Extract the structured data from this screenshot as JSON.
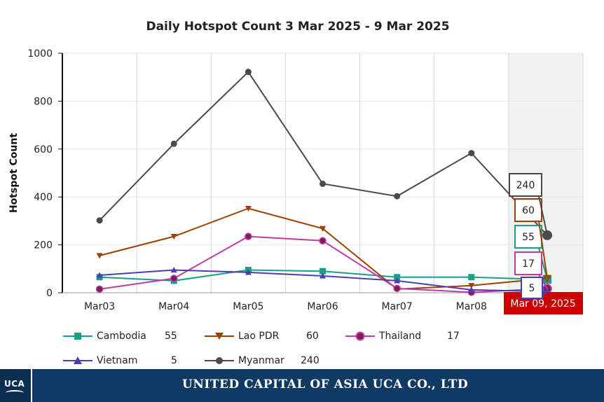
{
  "chart_data": {
    "type": "line",
    "title": "Daily Hotspot Count 3 Mar 2025 - 9 Mar 2025",
    "ylabel": "Hotspot Count",
    "xlabel": "",
    "ylim": [
      0,
      1000
    ],
    "yticks": [
      0,
      200,
      400,
      600,
      800,
      1000
    ],
    "categories": [
      "Mar03",
      "Mar04",
      "Mar05",
      "Mar06",
      "Mar07",
      "Mar08",
      "Mar 09, 2025"
    ],
    "grid": true,
    "legend_position": "bottom",
    "series": [
      {
        "name": "Cambodia",
        "color": "#16a085",
        "marker": "square",
        "values": [
          65,
          50,
          95,
          90,
          65,
          65,
          55
        ],
        "last_label": "55"
      },
      {
        "name": "Lao PDR",
        "color": "#a04000",
        "marker": "triangle-down",
        "values": [
          155,
          235,
          352,
          268,
          15,
          30,
          60
        ],
        "last_label": "60"
      },
      {
        "name": "Thailand",
        "color": "#c23ba5",
        "marker": "circle",
        "values": [
          15,
          60,
          235,
          217,
          18,
          2,
          17
        ],
        "last_label": "17"
      },
      {
        "name": "Vietnam",
        "color": "#4b3fb0",
        "marker": "triangle-up",
        "values": [
          73,
          95,
          85,
          70,
          50,
          12,
          5
        ],
        "last_label": "5"
      },
      {
        "name": "Myanmar",
        "color": "#4a4a4a",
        "marker": "circle",
        "values": [
          302,
          622,
          922,
          455,
          403,
          583,
          240
        ],
        "last_label": "240"
      }
    ],
    "hover_label": "Mar 09, 2025"
  },
  "legend": [
    {
      "name": "Cambodia",
      "value": "55"
    },
    {
      "name": "Lao PDR",
      "value": "60"
    },
    {
      "name": "Thailand",
      "value": "17"
    },
    {
      "name": "Vietnam",
      "value": "5"
    },
    {
      "name": "Myanmar",
      "value": "240"
    }
  ],
  "footer": {
    "logo_text": "UCA",
    "company_name": "UNITED CAPITAL OF ASIA UCA CO., LTD"
  }
}
